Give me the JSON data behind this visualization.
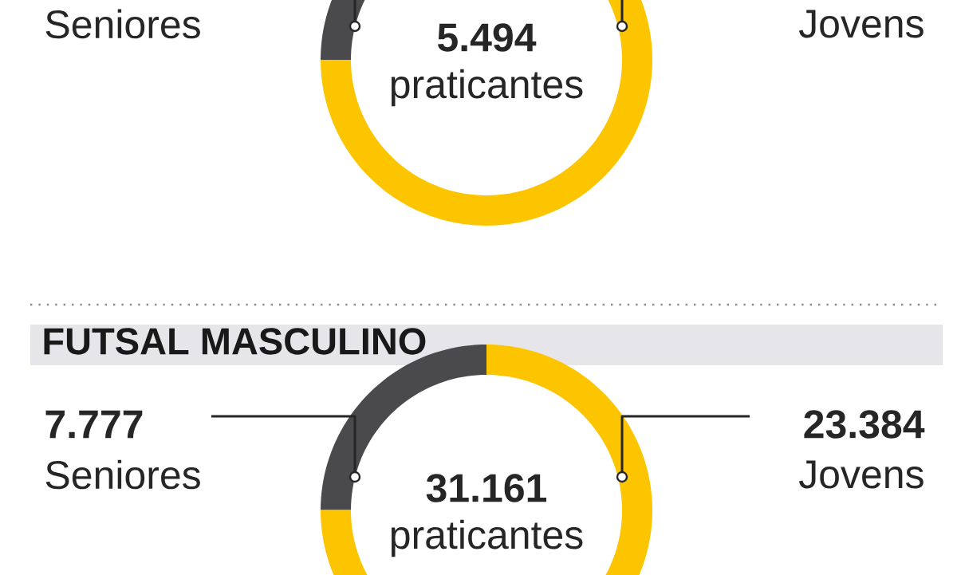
{
  "chart_data": [
    {
      "type": "donut",
      "categories": [
        "Seniores",
        "Jovens"
      ],
      "values": [
        25,
        75
      ],
      "colors": [
        "#4a4a4c",
        "#fcc500"
      ],
      "annotations": [
        "5.494",
        "praticantes"
      ]
    },
    {
      "type": "donut",
      "title": "FUTSAL MASCULINO",
      "categories": [
        "Seniores",
        "Jovens"
      ],
      "values": [
        7777,
        23384
      ],
      "value_labels": [
        "7.777",
        "23.384"
      ],
      "colors": [
        "#4a4a4c",
        "#fcc500"
      ],
      "annotations": [
        "31.161",
        "praticantes"
      ]
    }
  ]
}
